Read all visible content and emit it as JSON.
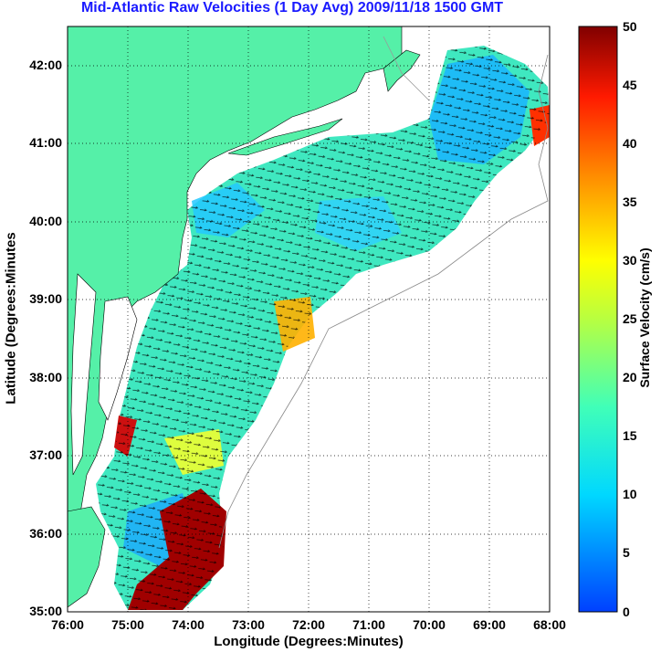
{
  "title": "Mid-Atlantic Raw Velocities (1 Day Avg) 2009/11/18 1500 GMT",
  "axes": {
    "xlabel": "Longitude (Degrees:Minutes)",
    "ylabel": "Latitude (Degrees:Minutes",
    "x_ticks": [
      "76:00",
      "75:00",
      "74:00",
      "73:00",
      "72:00",
      "71:00",
      "70:00",
      "69:00",
      "68:00"
    ],
    "y_ticks": [
      "42:00",
      "41:00",
      "40:00",
      "39:00",
      "38:00",
      "37:00",
      "36:00",
      "35:00"
    ]
  },
  "colorbar": {
    "label": "Surface Velocity (cm/s)",
    "ticks": [
      "50",
      "45",
      "40",
      "35",
      "30",
      "25",
      "20",
      "15",
      "10",
      "5",
      "0"
    ],
    "range": [
      0,
      50
    ],
    "colormap": "jet"
  },
  "map": {
    "lon_range": [
      -76,
      -68
    ],
    "lat_range": [
      35,
      42.5
    ],
    "land_color": "#55f0a8",
    "grid": "dotted"
  }
}
